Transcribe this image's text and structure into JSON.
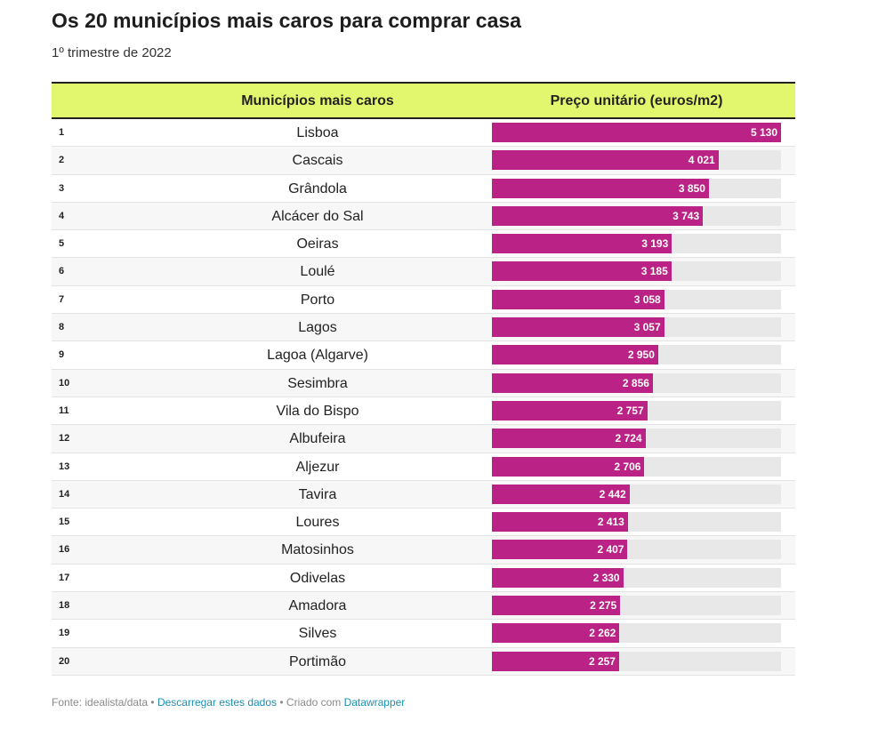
{
  "title": "Os 20 municípios mais caros para comprar casa",
  "subtitle": "1º trimestre de 2022",
  "columns": {
    "municipio": "Municípios mais caros",
    "preco": "Preço unitário (euros/m2)"
  },
  "colors": {
    "header_bg": "#e3f76e",
    "bar": "#ba2385",
    "track": "#e8e8e8",
    "link": "#1b8fb6"
  },
  "footer": {
    "source": "Fonte: idealista/data",
    "sep1": " • ",
    "download": "Descarregar estes dados",
    "sep2": " • Criado com ",
    "tool": "Datawrapper"
  },
  "chart_data": {
    "type": "bar",
    "orientation": "horizontal",
    "categories": [
      "Lisboa",
      "Cascais",
      "Grândola",
      "Alcácer do Sal",
      "Oeiras",
      "Loulé",
      "Porto",
      "Lagos",
      "Lagoa (Algarve)",
      "Sesimbra",
      "Vila do Bispo",
      "Albufeira",
      "Aljezur",
      "Tavira",
      "Loures",
      "Matosinhos",
      "Odivelas",
      "Amadora",
      "Silves",
      "Portimão"
    ],
    "values": [
      5130,
      4021,
      3850,
      3743,
      3193,
      3185,
      3058,
      3057,
      2950,
      2856,
      2757,
      2724,
      2706,
      2442,
      2413,
      2407,
      2330,
      2275,
      2262,
      2257
    ],
    "value_labels": [
      "5 130",
      "4 021",
      "3 850",
      "3 743",
      "3 193",
      "3 185",
      "3 058",
      "3 057",
      "2 950",
      "2 856",
      "2 757",
      "2 724",
      "2 706",
      "2 442",
      "2 413",
      "2 407",
      "2 330",
      "2 275",
      "2 262",
      "2 257"
    ],
    "ranks": [
      "1",
      "2",
      "3",
      "4",
      "5",
      "6",
      "7",
      "8",
      "9",
      "10",
      "11",
      "12",
      "13",
      "14",
      "15",
      "16",
      "17",
      "18",
      "19",
      "20"
    ],
    "xlim": [
      0,
      5130
    ]
  }
}
